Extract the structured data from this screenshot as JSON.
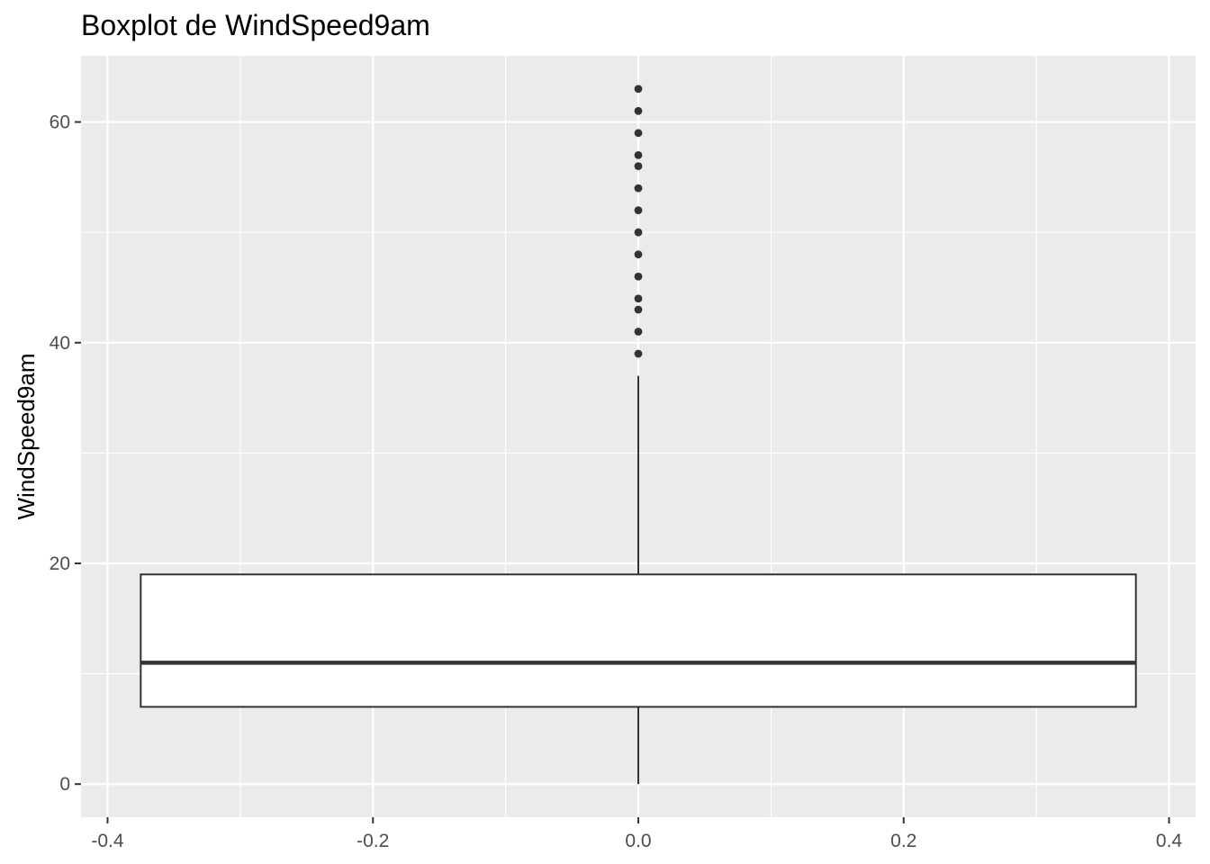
{
  "chart_data": {
    "type": "boxplot",
    "title": "Boxplot de WindSpeed9am",
    "xlabel": "",
    "ylabel": "WindSpeed9am",
    "xlim": [
      -0.42,
      0.42
    ],
    "ylim": [
      -3,
      66
    ],
    "x_ticks": [
      -0.4,
      -0.2,
      0.0,
      0.2,
      0.4
    ],
    "x_tick_labels": [
      "-0.4",
      "-0.2",
      "0.0",
      "0.2",
      "0.4"
    ],
    "y_ticks": [
      0,
      20,
      40,
      60
    ],
    "y_tick_labels": [
      "0",
      "20",
      "40",
      "60"
    ],
    "box": {
      "x_center": 0.0,
      "x_min": -0.375,
      "x_max": 0.375,
      "whisker_low": 0,
      "q1": 7,
      "median": 11,
      "q3": 19,
      "whisker_high": 37
    },
    "outliers": [
      39,
      41,
      43,
      44,
      46,
      48,
      50,
      52,
      54,
      56,
      57,
      59,
      61,
      63
    ],
    "grid": true,
    "colors": {
      "panel": "#ebebeb",
      "grid_major": "#ffffff",
      "box_fill": "#ffffff",
      "box_line": "#333333",
      "outlier": "#333333"
    }
  }
}
